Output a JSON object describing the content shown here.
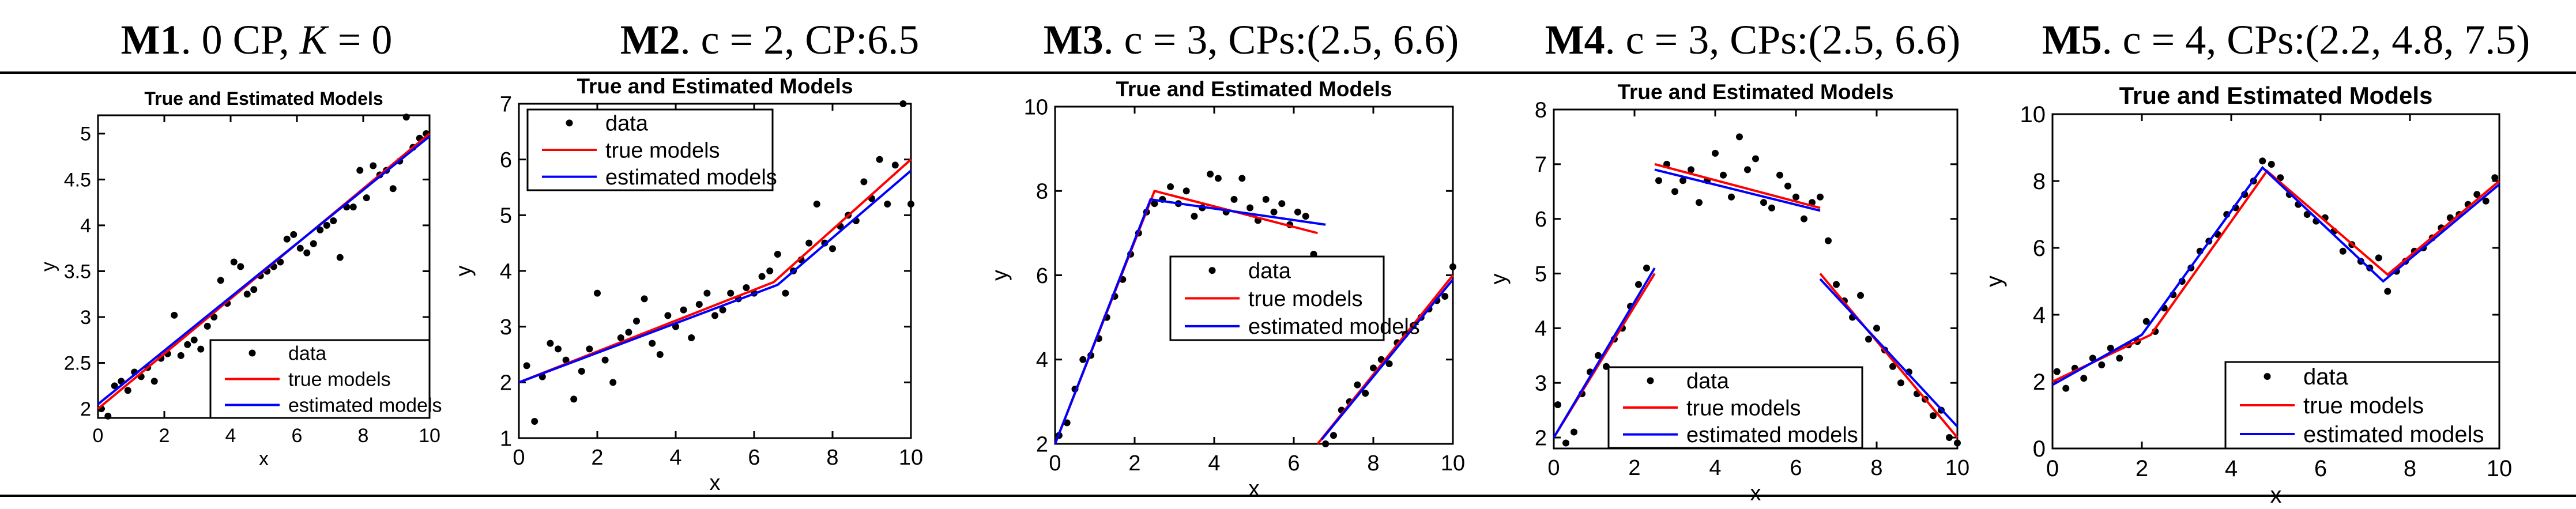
{
  "panel_titles": [
    {
      "id": "M1",
      "desc": ". 0 CP, ",
      "k": "K",
      "tail": " = 0"
    },
    {
      "id": "M2",
      "desc": ". c = 2, CP:6.5"
    },
    {
      "id": "M3",
      "desc": ". c = 3, CPs:(2.5, 6.6)"
    },
    {
      "id": "M4",
      "desc": ". c = 3, CPs:(2.5, 6.6)"
    },
    {
      "id": "M5",
      "desc": ". c = 4, CPs:(2.2, 4.8, 7.5)"
    }
  ],
  "colors": {
    "true": "#ff0000",
    "estimated": "#0000ff",
    "data": "#000000",
    "axis": "#000000"
  },
  "chart_data": [
    {
      "type": "scatter",
      "title": "True and Estimated Models",
      "xlabel": "x",
      "ylabel": "y",
      "xlim": [
        0,
        10
      ],
      "ylim": [
        1.9,
        5.2
      ],
      "xticks": [
        0,
        2,
        4,
        6,
        8,
        10
      ],
      "yticks": [
        2,
        2.5,
        3,
        3.5,
        4,
        4.5,
        5
      ],
      "legend": {
        "position": "bottom-right",
        "labels": [
          "data",
          "true models",
          "estimated models"
        ]
      },
      "true_models": [
        [
          [
            0,
            2.0
          ],
          [
            10,
            5.0
          ]
        ]
      ],
      "estimated_models": [
        [
          [
            0,
            2.05
          ],
          [
            10,
            4.97
          ]
        ]
      ],
      "points": [
        [
          0.1,
          2.0
        ],
        [
          0.3,
          1.92
        ],
        [
          0.5,
          2.25
        ],
        [
          0.7,
          2.3
        ],
        [
          0.9,
          2.2
        ],
        [
          1.1,
          2.4
        ],
        [
          1.3,
          2.35
        ],
        [
          1.5,
          2.45
        ],
        [
          1.7,
          2.3
        ],
        [
          1.9,
          2.55
        ],
        [
          2.1,
          2.6
        ],
        [
          2.3,
          3.02
        ],
        [
          2.5,
          2.58
        ],
        [
          2.7,
          2.7
        ],
        [
          2.9,
          2.75
        ],
        [
          3.1,
          2.65
        ],
        [
          3.3,
          2.9
        ],
        [
          3.5,
          3.0
        ],
        [
          3.7,
          3.4
        ],
        [
          3.9,
          3.15
        ],
        [
          4.1,
          3.6
        ],
        [
          4.3,
          3.55
        ],
        [
          4.5,
          3.25
        ],
        [
          4.7,
          3.3
        ],
        [
          4.9,
          3.45
        ],
        [
          5.1,
          3.5
        ],
        [
          5.3,
          3.55
        ],
        [
          5.5,
          3.6
        ],
        [
          5.7,
          3.85
        ],
        [
          5.9,
          3.9
        ],
        [
          6.1,
          3.75
        ],
        [
          6.3,
          3.7
        ],
        [
          6.5,
          3.8
        ],
        [
          6.7,
          3.95
        ],
        [
          6.9,
          4.0
        ],
        [
          7.1,
          4.05
        ],
        [
          7.3,
          3.65
        ],
        [
          7.5,
          4.2
        ],
        [
          7.7,
          4.2
        ],
        [
          7.9,
          4.6
        ],
        [
          8.1,
          4.3
        ],
        [
          8.3,
          4.65
        ],
        [
          8.5,
          4.55
        ],
        [
          8.7,
          4.6
        ],
        [
          8.9,
          4.4
        ],
        [
          9.1,
          4.7
        ],
        [
          9.3,
          5.18
        ],
        [
          9.5,
          4.85
        ],
        [
          9.7,
          4.95
        ],
        [
          9.9,
          5.0
        ]
      ]
    },
    {
      "type": "scatter",
      "title": "True and Estimated Models",
      "xlabel": "x",
      "ylabel": "y",
      "xlim": [
        0,
        10
      ],
      "ylim": [
        1,
        7
      ],
      "xticks": [
        0,
        2,
        4,
        6,
        8,
        10
      ],
      "yticks": [
        1,
        2,
        3,
        4,
        5,
        6,
        7
      ],
      "legend": {
        "position": "top-left",
        "labels": [
          "data",
          "true models",
          "estimated models"
        ]
      },
      "true_models": [
        [
          [
            0,
            2.0
          ],
          [
            6.5,
            3.8
          ],
          [
            10,
            6.0
          ]
        ]
      ],
      "estimated_models": [
        [
          [
            0,
            2.0
          ],
          [
            6.6,
            3.75
          ],
          [
            10,
            5.8
          ]
        ]
      ],
      "points": [
        [
          0.2,
          2.3
        ],
        [
          0.4,
          1.3
        ],
        [
          0.6,
          2.1
        ],
        [
          0.8,
          2.7
        ],
        [
          1.0,
          2.6
        ],
        [
          1.2,
          2.4
        ],
        [
          1.4,
          1.7
        ],
        [
          1.6,
          2.2
        ],
        [
          1.8,
          2.6
        ],
        [
          2.0,
          3.6
        ],
        [
          2.2,
          2.4
        ],
        [
          2.4,
          2.0
        ],
        [
          2.6,
          2.8
        ],
        [
          2.8,
          2.9
        ],
        [
          3.0,
          3.1
        ],
        [
          3.2,
          3.5
        ],
        [
          3.4,
          2.7
        ],
        [
          3.6,
          2.5
        ],
        [
          3.8,
          3.2
        ],
        [
          4.0,
          3.0
        ],
        [
          4.2,
          3.3
        ],
        [
          4.4,
          2.8
        ],
        [
          4.6,
          3.4
        ],
        [
          4.8,
          3.6
        ],
        [
          5.0,
          3.2
        ],
        [
          5.2,
          3.3
        ],
        [
          5.4,
          3.6
        ],
        [
          5.6,
          3.5
        ],
        [
          5.8,
          3.7
        ],
        [
          6.0,
          3.6
        ],
        [
          6.2,
          3.9
        ],
        [
          6.4,
          4.0
        ],
        [
          6.6,
          4.3
        ],
        [
          6.8,
          3.6
        ],
        [
          7.0,
          4.0
        ],
        [
          7.2,
          4.2
        ],
        [
          7.4,
          4.5
        ],
        [
          7.6,
          5.2
        ],
        [
          7.8,
          4.5
        ],
        [
          8.0,
          4.4
        ],
        [
          8.2,
          4.8
        ],
        [
          8.4,
          5.0
        ],
        [
          8.6,
          4.9
        ],
        [
          8.8,
          5.6
        ],
        [
          9.0,
          5.3
        ],
        [
          9.2,
          6.0
        ],
        [
          9.4,
          5.2
        ],
        [
          9.6,
          5.9
        ],
        [
          9.8,
          7.0
        ],
        [
          10.0,
          5.2
        ]
      ]
    },
    {
      "type": "scatter",
      "title": "True and Estimated Models",
      "xlabel": "x",
      "ylabel": "y",
      "xlim": [
        0,
        10
      ],
      "ylim": [
        2,
        10
      ],
      "xticks": [
        0,
        2,
        4,
        6,
        8,
        10
      ],
      "yticks": [
        2,
        4,
        6,
        8,
        10
      ],
      "legend": {
        "position": "center-right",
        "labels": [
          "data",
          "true models",
          "estimated models"
        ]
      },
      "true_models": [
        [
          [
            0,
            2.0
          ],
          [
            2.5,
            8.0
          ],
          [
            6.6,
            7.0
          ]
        ],
        [
          [
            6.6,
            2.0
          ],
          [
            10,
            6.0
          ]
        ]
      ],
      "estimated_models": [
        [
          [
            0,
            2.0
          ],
          [
            2.4,
            7.8
          ],
          [
            6.8,
            7.2
          ]
        ],
        [
          [
            6.7,
            2.1
          ],
          [
            10,
            5.9
          ]
        ]
      ],
      "points": [
        [
          0.1,
          2.2
        ],
        [
          0.3,
          2.5
        ],
        [
          0.5,
          3.3
        ],
        [
          0.7,
          4.0
        ],
        [
          0.9,
          4.1
        ],
        [
          1.1,
          4.5
        ],
        [
          1.3,
          5.0
        ],
        [
          1.5,
          5.5
        ],
        [
          1.7,
          5.9
        ],
        [
          1.9,
          6.5
        ],
        [
          2.1,
          7.0
        ],
        [
          2.3,
          7.5
        ],
        [
          2.5,
          7.7
        ],
        [
          2.7,
          7.8
        ],
        [
          2.9,
          8.1
        ],
        [
          3.1,
          7.7
        ],
        [
          3.3,
          8.0
        ],
        [
          3.5,
          7.4
        ],
        [
          3.7,
          7.6
        ],
        [
          3.9,
          8.4
        ],
        [
          4.1,
          8.3
        ],
        [
          4.3,
          7.5
        ],
        [
          4.5,
          7.8
        ],
        [
          4.7,
          8.3
        ],
        [
          4.9,
          7.6
        ],
        [
          5.1,
          7.3
        ],
        [
          5.3,
          7.8
        ],
        [
          5.5,
          7.5
        ],
        [
          5.7,
          7.7
        ],
        [
          5.9,
          7.2
        ],
        [
          6.1,
          7.5
        ],
        [
          6.3,
          7.4
        ],
        [
          6.5,
          6.5
        ],
        [
          6.8,
          2.0
        ],
        [
          7.0,
          2.2
        ],
        [
          7.2,
          2.8
        ],
        [
          7.4,
          3.0
        ],
        [
          7.6,
          3.4
        ],
        [
          7.8,
          3.2
        ],
        [
          8.0,
          3.8
        ],
        [
          8.2,
          4.0
        ],
        [
          8.4,
          3.9
        ],
        [
          8.6,
          4.4
        ],
        [
          8.8,
          4.6
        ],
        [
          9.0,
          4.8
        ],
        [
          9.2,
          5.0
        ],
        [
          9.4,
          5.2
        ],
        [
          9.6,
          5.4
        ],
        [
          9.8,
          5.5
        ],
        [
          10.0,
          6.2
        ]
      ]
    },
    {
      "type": "scatter",
      "title": "True and Estimated Models",
      "xlabel": "x",
      "ylabel": "y",
      "xlim": [
        0,
        10
      ],
      "ylim": [
        1.8,
        8
      ],
      "xticks": [
        0,
        2,
        4,
        6,
        8,
        10
      ],
      "yticks": [
        2,
        3,
        4,
        5,
        6,
        7,
        8
      ],
      "legend": {
        "position": "bottom-center",
        "labels": [
          "data",
          "true models",
          "estimated models"
        ]
      },
      "true_models": [
        [
          [
            0,
            2.0
          ],
          [
            2.5,
            5.0
          ]
        ],
        [
          [
            2.5,
            7.0
          ],
          [
            6.6,
            6.2
          ]
        ],
        [
          [
            6.6,
            5.0
          ],
          [
            10,
            2.0
          ]
        ]
      ],
      "estimated_models": [
        [
          [
            0,
            2.0
          ],
          [
            2.5,
            5.1
          ]
        ],
        [
          [
            2.5,
            6.9
          ],
          [
            6.6,
            6.15
          ]
        ],
        [
          [
            6.6,
            4.9
          ],
          [
            10,
            2.2
          ]
        ]
      ],
      "points": [
        [
          0.1,
          2.6
        ],
        [
          0.3,
          1.9
        ],
        [
          0.5,
          2.1
        ],
        [
          0.7,
          2.8
        ],
        [
          0.9,
          3.2
        ],
        [
          1.1,
          3.5
        ],
        [
          1.3,
          3.3
        ],
        [
          1.5,
          3.8
        ],
        [
          1.7,
          4.0
        ],
        [
          1.9,
          4.4
        ],
        [
          2.1,
          4.8
        ],
        [
          2.3,
          5.1
        ],
        [
          2.6,
          6.7
        ],
        [
          2.8,
          7.0
        ],
        [
          3.0,
          6.5
        ],
        [
          3.2,
          6.7
        ],
        [
          3.4,
          6.9
        ],
        [
          3.6,
          6.3
        ],
        [
          3.8,
          6.7
        ],
        [
          4.0,
          7.2
        ],
        [
          4.2,
          6.8
        ],
        [
          4.4,
          6.4
        ],
        [
          4.6,
          7.5
        ],
        [
          4.8,
          6.9
        ],
        [
          5.0,
          7.1
        ],
        [
          5.2,
          6.3
        ],
        [
          5.4,
          6.2
        ],
        [
          5.6,
          6.8
        ],
        [
          5.8,
          6.6
        ],
        [
          6.0,
          6.4
        ],
        [
          6.2,
          6.0
        ],
        [
          6.4,
          6.3
        ],
        [
          6.6,
          6.4
        ],
        [
          6.8,
          5.6
        ],
        [
          7.0,
          4.8
        ],
        [
          7.2,
          4.5
        ],
        [
          7.4,
          4.2
        ],
        [
          7.6,
          4.6
        ],
        [
          7.8,
          3.8
        ],
        [
          8.0,
          4.0
        ],
        [
          8.2,
          3.6
        ],
        [
          8.4,
          3.3
        ],
        [
          8.6,
          3.0
        ],
        [
          8.8,
          3.2
        ],
        [
          9.0,
          2.8
        ],
        [
          9.2,
          2.7
        ],
        [
          9.4,
          2.4
        ],
        [
          9.6,
          2.5
        ],
        [
          9.8,
          2.0
        ],
        [
          10.0,
          1.9
        ]
      ]
    },
    {
      "type": "scatter",
      "title": "True and Estimated Models",
      "xlabel": "x",
      "ylabel": "y",
      "xlim": [
        0,
        10
      ],
      "ylim": [
        0,
        10
      ],
      "xticks": [
        0,
        2,
        4,
        6,
        8,
        10
      ],
      "yticks": [
        0,
        2,
        4,
        6,
        8,
        10
      ],
      "legend": {
        "position": "bottom-right",
        "labels": [
          "data",
          "true models",
          "estimated models"
        ]
      },
      "true_models": [
        [
          [
            0,
            2.0
          ],
          [
            2.2,
            3.4
          ],
          [
            4.8,
            8.3
          ],
          [
            7.5,
            5.2
          ],
          [
            10,
            8.0
          ]
        ]
      ],
      "estimated_models": [
        [
          [
            0,
            1.9
          ],
          [
            2.0,
            3.4
          ],
          [
            4.7,
            8.4
          ],
          [
            7.4,
            5.0
          ],
          [
            10,
            7.9
          ]
        ]
      ],
      "points": [
        [
          0.1,
          2.3
        ],
        [
          0.3,
          1.8
        ],
        [
          0.5,
          2.4
        ],
        [
          0.7,
          2.1
        ],
        [
          0.9,
          2.7
        ],
        [
          1.1,
          2.5
        ],
        [
          1.3,
          3.0
        ],
        [
          1.5,
          2.7
        ],
        [
          1.7,
          3.1
        ],
        [
          1.9,
          3.2
        ],
        [
          2.1,
          3.8
        ],
        [
          2.3,
          3.5
        ],
        [
          2.5,
          4.2
        ],
        [
          2.7,
          4.6
        ],
        [
          2.9,
          5.0
        ],
        [
          3.1,
          5.4
        ],
        [
          3.3,
          5.9
        ],
        [
          3.5,
          6.2
        ],
        [
          3.7,
          6.4
        ],
        [
          3.9,
          7.0
        ],
        [
          4.1,
          7.2
        ],
        [
          4.3,
          7.6
        ],
        [
          4.5,
          8.0
        ],
        [
          4.7,
          8.6
        ],
        [
          4.9,
          8.5
        ],
        [
          5.1,
          8.1
        ],
        [
          5.3,
          7.6
        ],
        [
          5.5,
          7.3
        ],
        [
          5.7,
          7.0
        ],
        [
          5.9,
          6.8
        ],
        [
          6.1,
          6.9
        ],
        [
          6.3,
          6.5
        ],
        [
          6.5,
          5.9
        ],
        [
          6.7,
          6.1
        ],
        [
          6.9,
          5.6
        ],
        [
          7.1,
          5.4
        ],
        [
          7.3,
          5.7
        ],
        [
          7.5,
          4.7
        ],
        [
          7.7,
          5.3
        ],
        [
          7.9,
          5.6
        ],
        [
          8.1,
          5.9
        ],
        [
          8.3,
          6.0
        ],
        [
          8.5,
          6.3
        ],
        [
          8.7,
          6.6
        ],
        [
          8.9,
          6.9
        ],
        [
          9.1,
          7.0
        ],
        [
          9.3,
          7.3
        ],
        [
          9.5,
          7.6
        ],
        [
          9.7,
          7.4
        ],
        [
          9.9,
          8.1
        ]
      ]
    }
  ]
}
